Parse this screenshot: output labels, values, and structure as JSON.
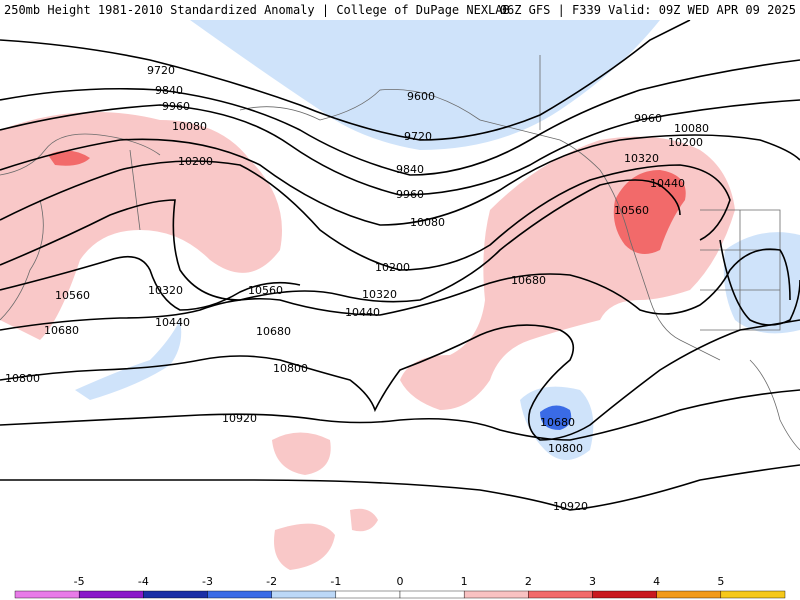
{
  "header": {
    "left_title": "250mb Height 1981-2010 Standardized Anomaly | College of DuPage NEXLAB",
    "right_title": "06Z GFS | F339 Valid: 09Z WED APR 09 2025"
  },
  "contour_labels": [
    "9720",
    "9840",
    "9960",
    "10080",
    "10200",
    "10320",
    "10440",
    "10560",
    "10680",
    "10800",
    "10920",
    "9600",
    "9720",
    "9840",
    "9960",
    "10080",
    "10200",
    "10320",
    "10440",
    "10560",
    "10680",
    "9960",
    "10080",
    "10200",
    "10320",
    "10440",
    "10560",
    "10680",
    "10800",
    "10920"
  ],
  "colorbar": {
    "ticks": [
      "-5",
      "-4",
      "-3",
      "-2",
      "-1",
      "0",
      "1",
      "2",
      "3",
      "4",
      "5"
    ],
    "colors": [
      "#e87be8",
      "#8a19c9",
      "#1a2fa6",
      "#3a6be6",
      "#bcd8f7",
      "#ffffff",
      "#ffffff",
      "#f9c2c2",
      "#f26a6a",
      "#c9191f",
      "#f29a1a",
      "#f6c81a"
    ]
  }
}
